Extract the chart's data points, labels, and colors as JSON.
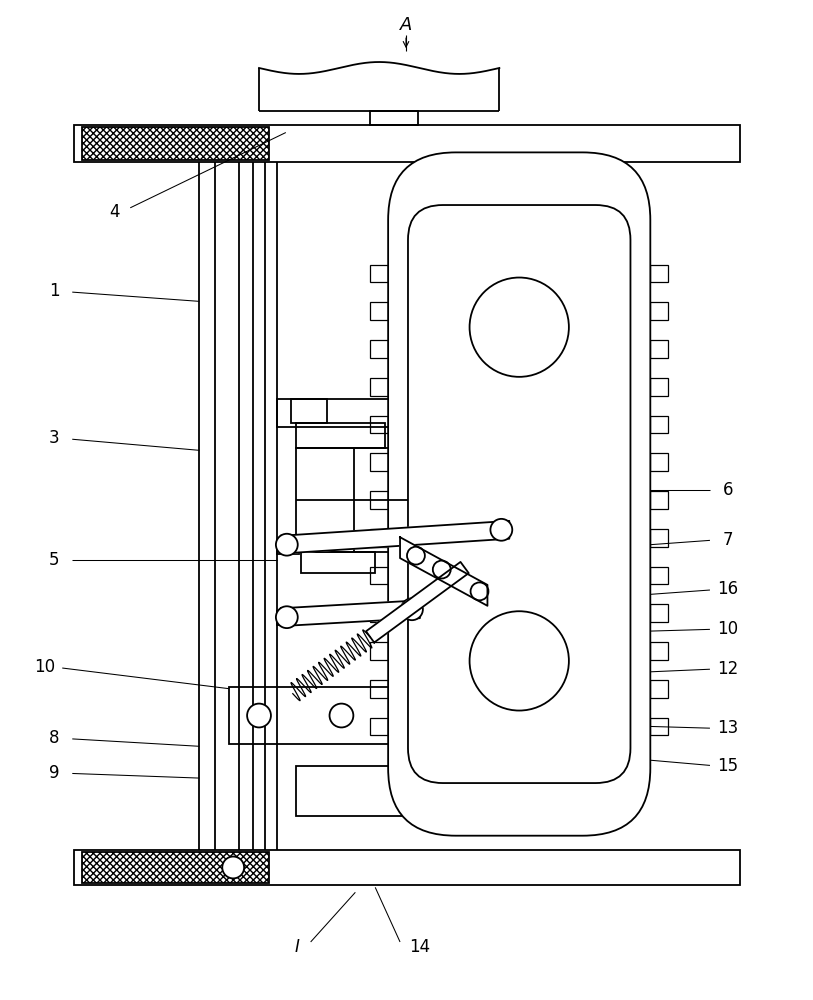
{
  "bg_color": "#ffffff",
  "line_color": "#000000",
  "lw": 1.3
}
